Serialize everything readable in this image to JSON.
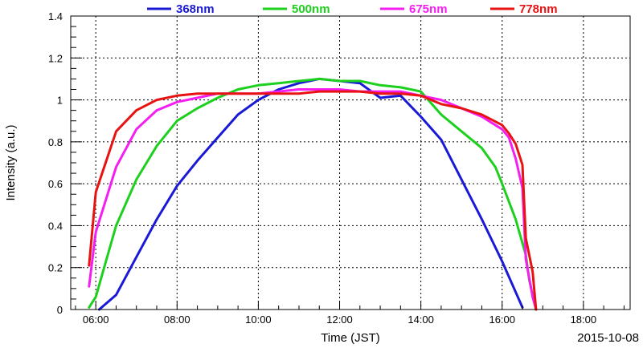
{
  "chart_data": {
    "type": "line",
    "title": "",
    "xlabel": "Time (JST)",
    "ylabel": "Intensity (a.u.)",
    "date_label": "2015-10-08",
    "x_range": [
      "05:23",
      "19:09"
    ],
    "ylim": [
      0,
      1.4
    ],
    "x_ticks": [
      "06:00",
      "08:00",
      "10:00",
      "12:00",
      "14:00",
      "16:00",
      "18:00"
    ],
    "y_ticks": [
      "0",
      "0.2",
      "0.4",
      "0.6",
      "0.8",
      "1",
      "1.2",
      "1.4"
    ],
    "grid": true,
    "legend_position": "top",
    "series": [
      {
        "name": "368nm",
        "color": "#1a1ad6",
        "x": [
          "06:05",
          "06:30",
          "07:00",
          "07:30",
          "08:00",
          "08:30",
          "09:00",
          "09:30",
          "10:00",
          "10:30",
          "11:00",
          "11:30",
          "12:00",
          "12:30",
          "13:00",
          "13:30",
          "14:00",
          "14:30",
          "15:00",
          "15:30",
          "16:00",
          "16:30"
        ],
        "y": [
          0.0,
          0.07,
          0.25,
          0.43,
          0.59,
          0.71,
          0.82,
          0.93,
          1.0,
          1.05,
          1.08,
          1.1,
          1.09,
          1.08,
          1.01,
          1.02,
          0.92,
          0.81,
          0.62,
          0.43,
          0.23,
          0.01
        ]
      },
      {
        "name": "500nm",
        "color": "#1ed01e",
        "x": [
          "05:50",
          "06:00",
          "06:15",
          "06:30",
          "07:00",
          "07:30",
          "08:00",
          "08:30",
          "09:00",
          "09:30",
          "10:00",
          "10:30",
          "11:00",
          "11:30",
          "12:00",
          "12:30",
          "13:00",
          "13:30",
          "14:00",
          "14:30",
          "15:00",
          "15:30",
          "15:50",
          "16:00",
          "16:20",
          "16:35",
          "16:40",
          "16:50"
        ],
        "y": [
          0.01,
          0.06,
          0.23,
          0.4,
          0.62,
          0.78,
          0.9,
          0.96,
          1.01,
          1.05,
          1.07,
          1.08,
          1.09,
          1.1,
          1.09,
          1.09,
          1.07,
          1.06,
          1.04,
          0.93,
          0.85,
          0.77,
          0.68,
          0.6,
          0.43,
          0.26,
          0.14,
          0.0
        ]
      },
      {
        "name": "675nm",
        "color": "#f51ef0",
        "x": [
          "05:50",
          "06:00",
          "06:30",
          "07:00",
          "07:30",
          "08:00",
          "08:30",
          "09:00",
          "09:30",
          "10:00",
          "10:30",
          "11:00",
          "11:30",
          "12:00",
          "12:30",
          "13:00",
          "13:30",
          "14:00",
          "14:30",
          "15:00",
          "15:30",
          "16:00",
          "16:10",
          "16:20",
          "16:30",
          "16:35",
          "16:45",
          "16:50"
        ],
        "y": [
          0.11,
          0.37,
          0.68,
          0.86,
          0.95,
          0.99,
          1.01,
          1.03,
          1.03,
          1.03,
          1.04,
          1.05,
          1.05,
          1.05,
          1.04,
          1.04,
          1.04,
          1.02,
          1.0,
          0.96,
          0.92,
          0.86,
          0.82,
          0.72,
          0.58,
          0.24,
          0.06,
          0.0
        ]
      },
      {
        "name": "778nm",
        "color": "#e81212",
        "x": [
          "05:50",
          "06:00",
          "06:30",
          "07:00",
          "07:30",
          "08:00",
          "08:30",
          "09:00",
          "09:30",
          "10:00",
          "10:30",
          "11:00",
          "11:30",
          "12:00",
          "12:30",
          "13:00",
          "13:30",
          "14:00",
          "14:30",
          "15:00",
          "15:30",
          "16:00",
          "16:10",
          "16:20",
          "16:30",
          "16:35",
          "16:45",
          "16:50"
        ],
        "y": [
          0.21,
          0.56,
          0.85,
          0.95,
          1.0,
          1.02,
          1.03,
          1.03,
          1.03,
          1.03,
          1.03,
          1.03,
          1.04,
          1.04,
          1.04,
          1.03,
          1.03,
          1.02,
          0.98,
          0.96,
          0.93,
          0.88,
          0.84,
          0.79,
          0.69,
          0.34,
          0.18,
          0.0
        ]
      }
    ]
  }
}
